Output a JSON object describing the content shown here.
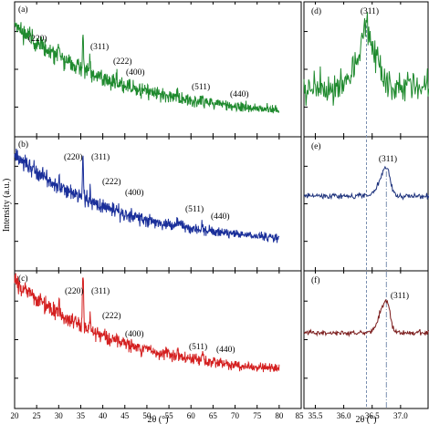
{
  "chart_data": {
    "type": "line",
    "xlabel": "2θ (°)",
    "ylabel": "Intensity (a.u.)",
    "panels": [
      {
        "id": "a",
        "label": "(a)",
        "color": "#1f8a2e",
        "xlim": [
          20,
          85
        ],
        "peaks": [
          {
            "x": 30.1,
            "label": "(220)",
            "height": 0.1
          },
          {
            "x": 35.5,
            "label": "(311)",
            "height": 0.28
          },
          {
            "x": 37.1,
            "label": "(222)",
            "height": 0.1
          },
          {
            "x": 43.1,
            "label": "(400)",
            "height": 0.05
          },
          {
            "x": 57.0,
            "label": "(511)",
            "height": 0.06
          },
          {
            "x": 62.6,
            "label": "(440)",
            "height": 0.05
          }
        ]
      },
      {
        "id": "b",
        "label": "(b)",
        "color": "#1a2f9a",
        "xlim": [
          20,
          85
        ],
        "peaks": [
          {
            "x": 30.1,
            "label": "(220)",
            "height": 0.1
          },
          {
            "x": 35.5,
            "label": "(311)",
            "height": 0.3
          },
          {
            "x": 37.1,
            "label": "(222)",
            "height": 0.1
          },
          {
            "x": 43.1,
            "label": "(400)",
            "height": 0.05
          },
          {
            "x": 57.0,
            "label": "(511)",
            "height": 0.07
          },
          {
            "x": 62.6,
            "label": "(440)",
            "height": 0.05
          }
        ]
      },
      {
        "id": "c",
        "label": "(c)",
        "color": "#d42020",
        "xlim": [
          20,
          85
        ],
        "peaks": [
          {
            "x": 30.1,
            "label": "(220)",
            "height": 0.1
          },
          {
            "x": 35.5,
            "label": "(311)",
            "height": 0.4
          },
          {
            "x": 37.1,
            "label": "(222)",
            "height": 0.1
          },
          {
            "x": 43.1,
            "label": "(400)",
            "height": 0.05
          },
          {
            "x": 57.0,
            "label": "(511)",
            "height": 0.06
          },
          {
            "x": 62.6,
            "label": "(440)",
            "height": 0.05
          }
        ]
      },
      {
        "id": "d",
        "label": "(d)",
        "color": "#1f8a2e",
        "xlim": [
          35.3,
          37.5
        ],
        "peaks": [
          {
            "x": 36.4,
            "label": "(311)"
          }
        ]
      },
      {
        "id": "e",
        "label": "(e)",
        "color": "#1a2f7a",
        "xlim": [
          35.3,
          37.5
        ],
        "peaks": [
          {
            "x": 36.75,
            "label": "(311)"
          }
        ]
      },
      {
        "id": "f",
        "label": "(f)",
        "color": "#7a1a1a",
        "xlim": [
          35.3,
          37.5
        ],
        "peaks": [
          {
            "x": 36.75,
            "label": "(311)"
          }
        ]
      }
    ],
    "main_xticks": [
      "20",
      "25",
      "30",
      "35",
      "40",
      "45",
      "50",
      "55",
      "60",
      "65",
      "70",
      "75",
      "80",
      "85"
    ],
    "inset_xticks": [
      "35.5",
      "36.0",
      "36.5",
      "37.0"
    ],
    "reference_lines": [
      36.4,
      36.75
    ]
  }
}
